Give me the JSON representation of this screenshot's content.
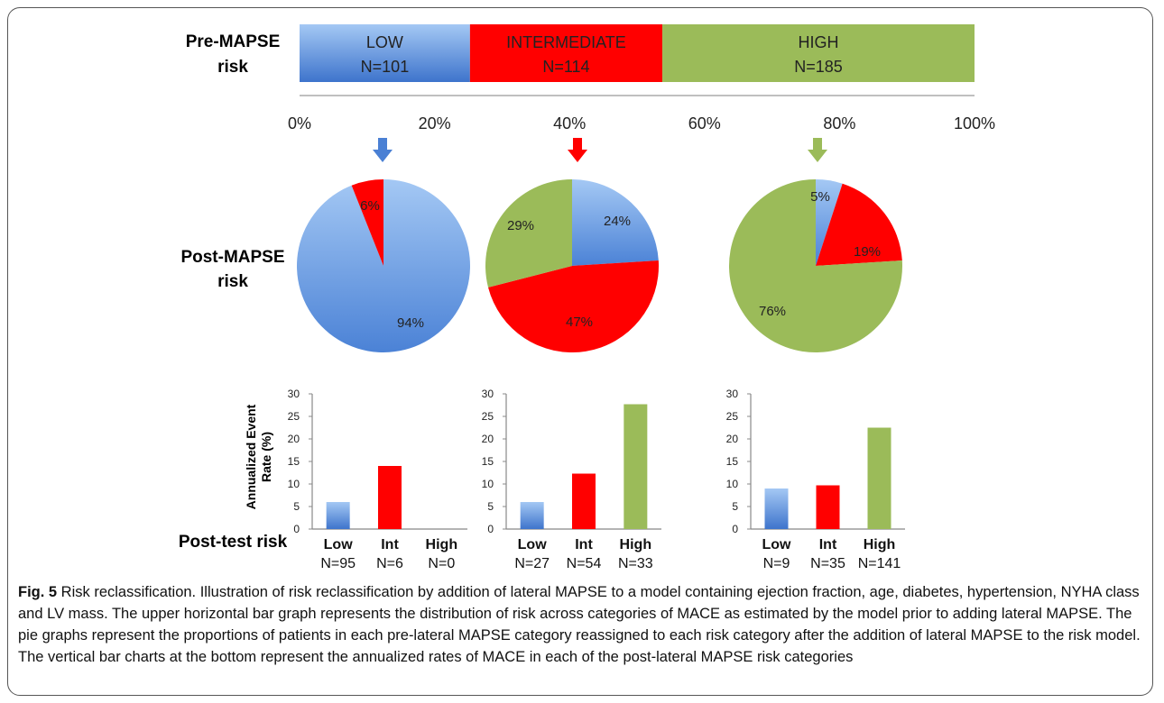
{
  "colors": {
    "low_light": "#9dc3f2",
    "low_dark": "#3f77cf",
    "intermediate": "#ff0000",
    "high": "#9bbb59",
    "axis": "#888888"
  },
  "labels": {
    "pre_line1": "Pre-MAPSE",
    "pre_line2": "risk",
    "post_line1": "Post-MAPSE",
    "post_line2": "risk",
    "post_test": "Post-test risk",
    "y_axis_line1": "Annualized Event",
    "y_axis_line2": "Rate (%)"
  },
  "chart_data": [
    {
      "type": "bar",
      "subtype": "stacked-horizontal",
      "segments": [
        {
          "name": "LOW",
          "n_label": "N=101",
          "value": 101,
          "color": "low"
        },
        {
          "name": "INTERMEDIATE",
          "n_label": "N=114",
          "value": 114,
          "color": "intermediate"
        },
        {
          "name": "HIGH",
          "n_label": "N=185",
          "value": 185,
          "color": "high"
        }
      ],
      "xticks": [
        "0%",
        "20%",
        "40%",
        "60%",
        "80%",
        "100%"
      ],
      "xlim": [
        0,
        100
      ]
    },
    {
      "type": "pie",
      "slices": [
        {
          "label": "94%",
          "value": 94,
          "color": "low"
        },
        {
          "label": "6%",
          "value": 6,
          "color": "intermediate"
        }
      ]
    },
    {
      "type": "pie",
      "slices": [
        {
          "label": "24%",
          "value": 24,
          "color": "low"
        },
        {
          "label": "47%",
          "value": 47,
          "color": "intermediate"
        },
        {
          "label": "29%",
          "value": 29,
          "color": "high"
        }
      ]
    },
    {
      "type": "pie",
      "slices": [
        {
          "label": "5%",
          "value": 5,
          "color": "low"
        },
        {
          "label": "19%",
          "value": 19,
          "color": "intermediate"
        },
        {
          "label": "76%",
          "value": 76,
          "color": "high"
        }
      ]
    },
    {
      "type": "bar",
      "categories": [
        "Low",
        "Int",
        "High"
      ],
      "n_labels": [
        "N=95",
        "N=6",
        "N=0"
      ],
      "values": [
        6,
        14,
        0
      ],
      "colors": [
        "low",
        "intermediate",
        "high"
      ],
      "ylim": [
        0,
        30
      ],
      "yticks": [
        "0",
        "5",
        "10",
        "15",
        "20",
        "25",
        "30"
      ]
    },
    {
      "type": "bar",
      "categories": [
        "Low",
        "Int",
        "High"
      ],
      "n_labels": [
        "N=27",
        "N=54",
        "N=33"
      ],
      "values": [
        6,
        12.3,
        27.7
      ],
      "colors": [
        "low",
        "intermediate",
        "high"
      ],
      "ylim": [
        0,
        30
      ],
      "yticks": [
        "0",
        "5",
        "10",
        "15",
        "20",
        "25",
        "30"
      ]
    },
    {
      "type": "bar",
      "categories": [
        "Low",
        "Int",
        "High"
      ],
      "n_labels": [
        "N=9",
        "N=35",
        "N=141"
      ],
      "values": [
        9,
        9.7,
        22.5
      ],
      "colors": [
        "low",
        "intermediate",
        "high"
      ],
      "ylim": [
        0,
        30
      ],
      "yticks": [
        "0",
        "5",
        "10",
        "15",
        "20",
        "25",
        "30"
      ]
    }
  ],
  "caption": {
    "fig_label": "Fig. 5",
    "text": " Risk reclassification. Illustration of risk reclassification by addition of lateral MAPSE to a model containing ejection fraction, age, diabetes, hypertension, NYHA class and LV mass. The upper horizontal bar graph represents the distribution of risk across categories of MACE as estimated by the model prior to adding lateral MAPSE. The pie graphs represent the proportions of patients in each pre-lateral MAPSE category reassigned to each risk category after the addition of lateral MAPSE to the risk model. The vertical bar charts at the bottom represent the annualized rates of MACE in each of the post-lateral MAPSE risk categories"
  }
}
